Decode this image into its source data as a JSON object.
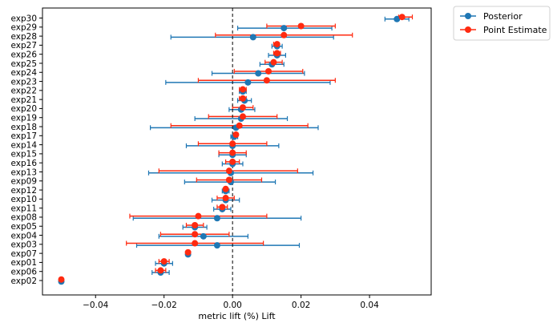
{
  "chart_data": {
    "type": "scatter",
    "xlabel": "metric lift (%) Lift",
    "ylabel": "",
    "xlim": [
      -0.0555,
      0.058
    ],
    "xticks": [
      -0.04,
      -0.02,
      0.0,
      0.02,
      0.04
    ],
    "xtick_labels": [
      "−0.04",
      "−0.02",
      "0.00",
      "0.02",
      "0.04"
    ],
    "reference_line_x": 0.0,
    "legend_position": "outside-top-right",
    "grid": false,
    "categories": [
      "exp30",
      "exp29",
      "exp28",
      "exp27",
      "exp26",
      "exp25",
      "exp24",
      "exp23",
      "exp22",
      "exp21",
      "exp20",
      "exp19",
      "exp18",
      "exp17",
      "exp14",
      "exp15",
      "exp16",
      "exp13",
      "exp09",
      "exp12",
      "exp10",
      "exp11",
      "exp08",
      "exp05",
      "exp04",
      "exp03",
      "exp07",
      "exp01",
      "exp06",
      "exp02"
    ],
    "series": [
      {
        "name": "Posterior",
        "color": "#1f77b4",
        "values": [
          0.048,
          0.015,
          0.006,
          0.013,
          0.013,
          0.0115,
          0.0075,
          0.0045,
          0.003,
          0.0035,
          0.0025,
          0.0025,
          0.001,
          0.0005,
          0.0,
          0.0,
          0.0,
          -0.0005,
          -0.0005,
          -0.002,
          -0.002,
          -0.003,
          -0.0045,
          -0.011,
          -0.0085,
          -0.0045,
          -0.013,
          -0.02,
          -0.021,
          -0.05
        ],
        "lower": [
          0.0445,
          0.0015,
          -0.018,
          0.0115,
          0.0105,
          0.008,
          -0.006,
          -0.0195,
          0.002,
          0.0015,
          -0.001,
          -0.011,
          -0.024,
          -0.0005,
          -0.0135,
          -0.004,
          -0.003,
          -0.0245,
          -0.014,
          -0.003,
          -0.006,
          -0.0055,
          -0.029,
          -0.0145,
          -0.0215,
          -0.028,
          -0.0135,
          -0.0225,
          -0.0235,
          -0.05
        ],
        "upper": [
          0.0515,
          0.029,
          0.0295,
          0.0145,
          0.0155,
          0.015,
          0.021,
          0.0285,
          0.004,
          0.0055,
          0.0065,
          0.016,
          0.025,
          0.0015,
          0.0135,
          0.004,
          0.003,
          0.0235,
          0.0125,
          -0.001,
          0.002,
          -0.0005,
          0.02,
          -0.0075,
          0.0045,
          0.0195,
          -0.0125,
          -0.0175,
          -0.0185,
          -0.05
        ]
      },
      {
        "name": "Point Estimate",
        "color": "#ff2a10",
        "values": [
          0.0495,
          0.02,
          0.015,
          0.013,
          0.013,
          0.012,
          0.0105,
          0.01,
          0.003,
          0.003,
          0.003,
          0.003,
          0.002,
          0.001,
          0.0,
          0.0,
          0.0,
          -0.001,
          -0.001,
          -0.002,
          -0.002,
          -0.003,
          -0.01,
          -0.011,
          -0.011,
          -0.011,
          -0.013,
          -0.02,
          -0.021,
          -0.05
        ],
        "lower": [
          0.0485,
          0.01,
          -0.005,
          0.012,
          0.012,
          0.0095,
          0.0005,
          -0.01,
          0.002,
          0.002,
          0.0,
          -0.007,
          -0.018,
          0.0005,
          -0.01,
          -0.004,
          -0.002,
          -0.0215,
          -0.0105,
          -0.0025,
          -0.0045,
          -0.0045,
          -0.03,
          -0.0135,
          -0.021,
          -0.031,
          -0.0135,
          -0.0215,
          -0.0225,
          -0.05
        ],
        "upper": [
          0.0525,
          0.03,
          0.035,
          0.0135,
          0.014,
          0.0145,
          0.0205,
          0.03,
          0.004,
          0.004,
          0.006,
          0.013,
          0.022,
          0.0015,
          0.01,
          0.004,
          0.002,
          0.019,
          0.0085,
          -0.0015,
          0.0005,
          -0.0015,
          0.01,
          -0.0085,
          -0.001,
          0.009,
          -0.0125,
          -0.0185,
          -0.0195,
          -0.05
        ]
      }
    ]
  }
}
